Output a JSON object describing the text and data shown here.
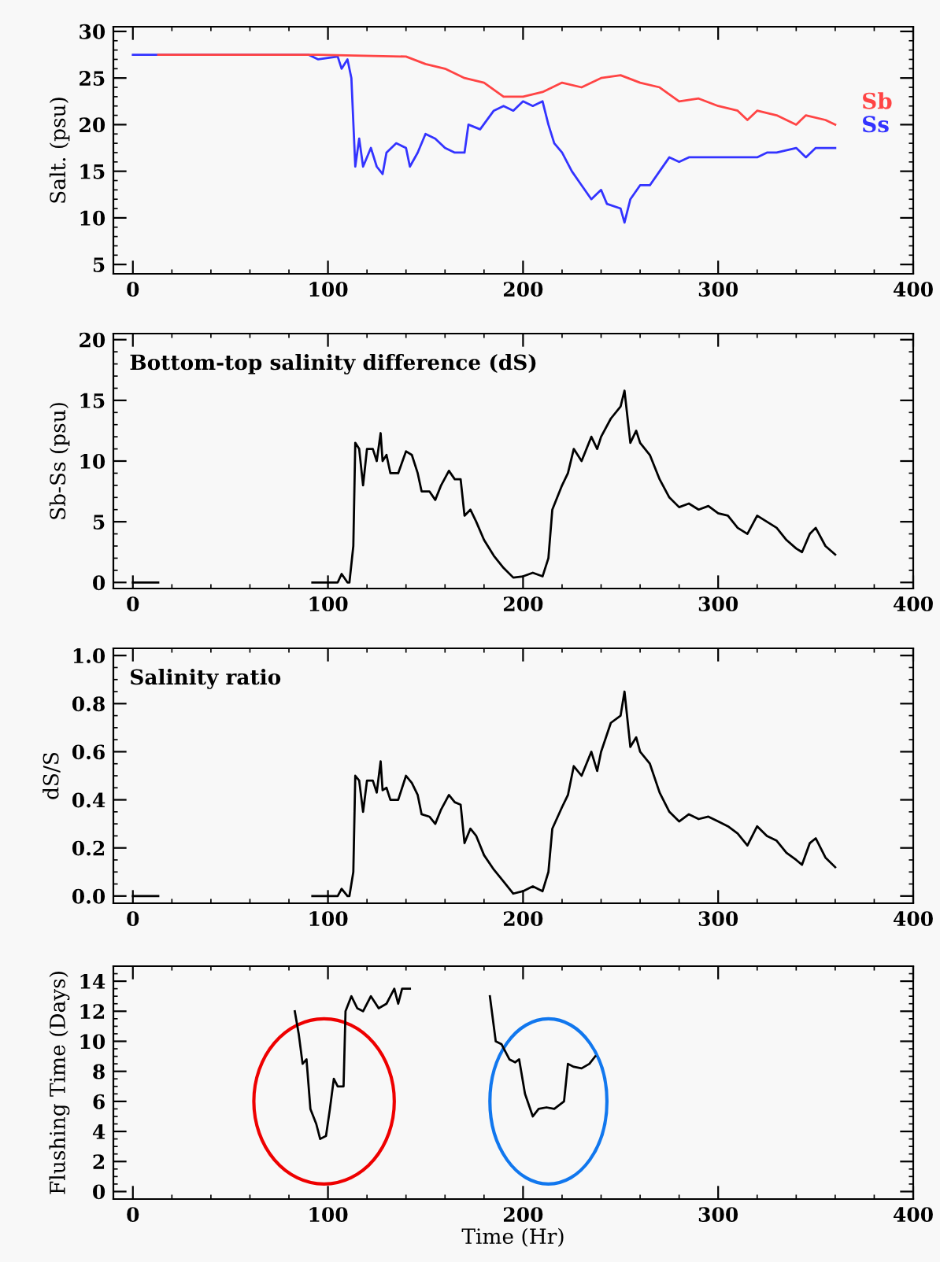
{
  "chart_data": [
    {
      "type": "line",
      "ylabel": "Salt. (psu)",
      "xlim": [
        -10,
        400
      ],
      "xticks": [
        0,
        100,
        200,
        300,
        400
      ],
      "ylim": [
        4,
        30.5
      ],
      "yticks": [
        5,
        10,
        15,
        20,
        25,
        30
      ],
      "grid": false,
      "legend": false,
      "series": [
        {
          "name": "Ss",
          "color": "#3333ff",
          "x": [
            0,
            90,
            95,
            105,
            107,
            110,
            112,
            114,
            116,
            118,
            122,
            125,
            128,
            130,
            135,
            140,
            142,
            146,
            150,
            155,
            160,
            165,
            170,
            172,
            178,
            185,
            190,
            195,
            200,
            205,
            210,
            213,
            216,
            220,
            225,
            230,
            235,
            240,
            243,
            250,
            252,
            255,
            260,
            265,
            270,
            275,
            280,
            285,
            300,
            310,
            320,
            325,
            330,
            340,
            345,
            350,
            360
          ],
          "values": [
            27.5,
            27.5,
            27,
            27.3,
            26,
            27,
            25,
            15.5,
            18.5,
            15.5,
            17.5,
            15.5,
            14.7,
            17,
            18,
            17.5,
            15.5,
            17,
            19,
            18.5,
            17.5,
            17,
            17,
            20,
            19.5,
            21.5,
            22,
            21.5,
            22.5,
            22,
            22.5,
            20,
            18,
            17,
            15,
            13.5,
            12,
            13,
            11.5,
            11,
            9.5,
            12,
            13.5,
            13.5,
            15,
            16.5,
            16,
            16.5,
            16.5,
            16.5,
            16.5,
            17,
            17,
            17.5,
            16.5,
            17.5,
            17.5
          ]
        },
        {
          "name": "Sb",
          "color": "#ff4444",
          "x": [
            13,
            95,
            140,
            150,
            160,
            170,
            180,
            190,
            200,
            210,
            220,
            230,
            240,
            250,
            260,
            270,
            280,
            290,
            300,
            310,
            315,
            320,
            330,
            340,
            345,
            355,
            360
          ],
          "values": [
            27.5,
            27.5,
            27.3,
            26.5,
            26,
            25,
            24.5,
            23,
            23,
            23.5,
            24.5,
            24,
            25,
            25.3,
            24.5,
            24,
            22.5,
            22.8,
            22,
            21.5,
            20.5,
            21.5,
            21,
            20,
            21,
            20.5,
            20
          ]
        }
      ]
    },
    {
      "type": "line",
      "title": "Bottom-top salinity difference (dS)",
      "ylabel": "Sb-Ss (psu)",
      "xlim": [
        -10,
        400
      ],
      "xticks": [
        0,
        100,
        200,
        300,
        400
      ],
      "ylim": [
        -0.5,
        20.5
      ],
      "yticks": [
        0,
        5,
        10,
        15,
        20
      ],
      "grid": false,
      "legend": false,
      "series": [
        {
          "color": "#000000",
          "x": [
            0,
            13,
            50,
            92,
            105,
            107,
            110,
            111,
            113,
            114,
            116,
            118,
            120,
            123,
            125,
            127,
            128,
            130,
            132,
            136,
            140,
            143,
            146,
            148,
            152,
            155,
            158,
            162,
            165,
            168,
            170,
            173,
            176,
            180,
            185,
            190,
            195,
            200,
            205,
            210,
            213,
            215,
            220,
            223,
            226,
            230,
            235,
            238,
            240,
            245,
            250,
            252,
            255,
            258,
            260,
            265,
            270,
            275,
            280,
            285,
            290,
            295,
            300,
            305,
            310,
            315,
            320,
            325,
            330,
            335,
            340,
            343,
            347,
            350,
            355,
            360
          ],
          "values": [
            0,
            0,
            null,
            0,
            0,
            0.7,
            0,
            0,
            3,
            11.5,
            11,
            8,
            11,
            11,
            10,
            12.3,
            10,
            10.5,
            9,
            9,
            10.8,
            10.5,
            9,
            7.5,
            7.5,
            6.8,
            8,
            9.2,
            8.5,
            8.5,
            5.5,
            6,
            5,
            3.5,
            2.2,
            1.2,
            0.4,
            0.5,
            0.8,
            0.5,
            2,
            6,
            8,
            9,
            11,
            10,
            12,
            11,
            12,
            13.5,
            14.5,
            15.8,
            11.5,
            12.5,
            11.5,
            10.5,
            8.5,
            7,
            6.2,
            6.5,
            6,
            6.3,
            5.7,
            5.5,
            4.5,
            4,
            5.5,
            5,
            4.5,
            3.5,
            2.8,
            2.5,
            4,
            4.5,
            3,
            2.3
          ]
        }
      ]
    },
    {
      "type": "line",
      "title": "Salinity ratio",
      "ylabel": "dS/S",
      "xlim": [
        -10,
        400
      ],
      "xticks": [
        0,
        100,
        200,
        300,
        400
      ],
      "ylim": [
        -0.03,
        1.03
      ],
      "yticks": [
        {
          "value": 0,
          "label": "0.0"
        },
        {
          "value": 0.2,
          "label": "0.2"
        },
        {
          "value": 0.4,
          "label": "0.4"
        },
        {
          "value": 0.6,
          "label": "0.6"
        },
        {
          "value": 0.8,
          "label": "0.8"
        },
        {
          "value": 1,
          "label": "1.0"
        }
      ],
      "grid": false,
      "legend": false,
      "series": [
        {
          "color": "#000000",
          "x": [
            0,
            13,
            50,
            92,
            105,
            107,
            110,
            111,
            113,
            114,
            116,
            118,
            120,
            123,
            125,
            127,
            128,
            130,
            132,
            136,
            140,
            143,
            146,
            148,
            152,
            155,
            158,
            162,
            165,
            168,
            170,
            173,
            176,
            180,
            185,
            190,
            195,
            200,
            205,
            210,
            213,
            215,
            220,
            223,
            226,
            230,
            235,
            238,
            240,
            245,
            250,
            252,
            255,
            258,
            260,
            265,
            270,
            275,
            280,
            285,
            290,
            295,
            300,
            305,
            310,
            315,
            320,
            325,
            330,
            335,
            340,
            343,
            347,
            350,
            355,
            360
          ],
          "values": [
            0,
            0,
            null,
            0,
            0,
            0.03,
            0,
            0,
            0.1,
            0.5,
            0.48,
            0.35,
            0.48,
            0.48,
            0.43,
            0.56,
            0.44,
            0.45,
            0.4,
            0.4,
            0.5,
            0.47,
            0.42,
            0.34,
            0.33,
            0.3,
            0.36,
            0.42,
            0.39,
            0.38,
            0.22,
            0.28,
            0.25,
            0.17,
            0.11,
            0.06,
            0.01,
            0.02,
            0.04,
            0.02,
            0.1,
            0.28,
            0.37,
            0.42,
            0.54,
            0.5,
            0.6,
            0.52,
            0.6,
            0.72,
            0.75,
            0.85,
            0.62,
            0.66,
            0.6,
            0.55,
            0.43,
            0.35,
            0.31,
            0.34,
            0.32,
            0.33,
            0.31,
            0.29,
            0.26,
            0.21,
            0.29,
            0.25,
            0.23,
            0.18,
            0.15,
            0.13,
            0.22,
            0.24,
            0.16,
            0.12
          ]
        }
      ]
    },
    {
      "type": "line",
      "xlabel": "Time (Hr)",
      "ylabel": "Flushing Time (Days)",
      "xlim": [
        -10,
        400
      ],
      "xticks": [
        0,
        100,
        200,
        300,
        400
      ],
      "ylim": [
        -0.5,
        15
      ],
      "yticks": [
        0,
        2,
        4,
        6,
        8,
        10,
        12,
        14
      ],
      "grid": false,
      "legend": false,
      "series": [
        {
          "color": "#000000",
          "x": [
            83,
            85,
            87,
            89,
            91,
            94,
            96,
            99,
            101,
            103,
            105,
            108,
            109,
            112,
            115,
            118,
            122,
            126,
            130,
            134,
            136,
            138,
            142
          ],
          "values": [
            12,
            10.5,
            8.5,
            8.8,
            5.5,
            4.5,
            3.5,
            3.7,
            5.5,
            7.5,
            7,
            7,
            12,
            13,
            12.2,
            12,
            13,
            12.2,
            12.5,
            13.5,
            12.5,
            13.5,
            13.5
          ]
        },
        {
          "color": "#000000",
          "x": [
            183,
            186,
            189,
            193,
            196,
            198,
            201,
            205,
            208,
            212,
            216,
            221,
            223,
            226,
            230,
            234,
            237
          ],
          "values": [
            13,
            10,
            9.8,
            8.8,
            8.6,
            8.8,
            6.5,
            5,
            5.5,
            5.6,
            5.5,
            6,
            8.5,
            8.3,
            8.2,
            8.5,
            9
          ]
        }
      ]
    }
  ]
}
